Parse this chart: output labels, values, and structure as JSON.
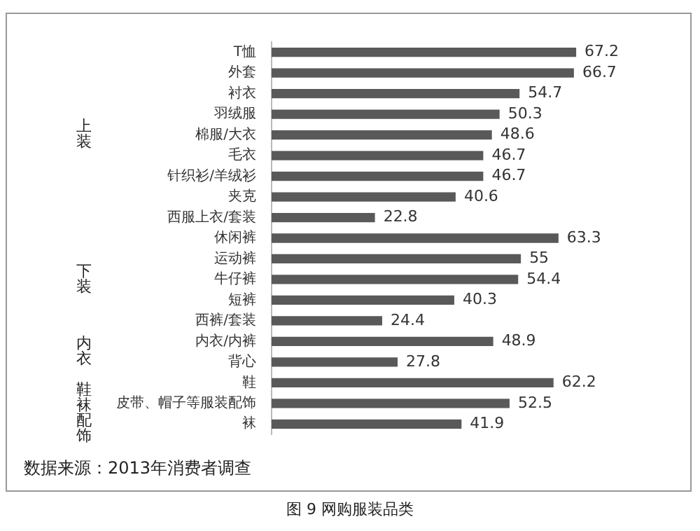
{
  "chart_data": {
    "type": "bar",
    "orientation": "horizontal",
    "title": "图 9 网购服装品类",
    "categories": [
      "T恤",
      "外套",
      "衬衣",
      "羽绒服",
      "棉服/大衣",
      "毛衣",
      "针织衫/羊绒衫",
      "夹克",
      "西服上衣/套装",
      "休闲裤",
      "运动裤",
      "牛仔裤",
      "短裤",
      "西裤/套装",
      "内衣/内裤",
      "背心",
      "鞋",
      "皮带、帽子等服装配饰",
      "袜"
    ],
    "values": [
      67.2,
      66.7,
      54.7,
      50.3,
      48.6,
      46.7,
      46.7,
      40.6,
      22.8,
      63.3,
      55,
      54.4,
      40.3,
      24.4,
      48.9,
      27.8,
      62.2,
      52.5,
      41.9
    ],
    "color": "#595959",
    "data_labels": true,
    "legend": false,
    "tick_labels": "y",
    "annotations": [
      "上装",
      "下装",
      "内衣",
      "鞋袜配饰",
      "数据来源：2013年消费者调查"
    ]
  }
}
